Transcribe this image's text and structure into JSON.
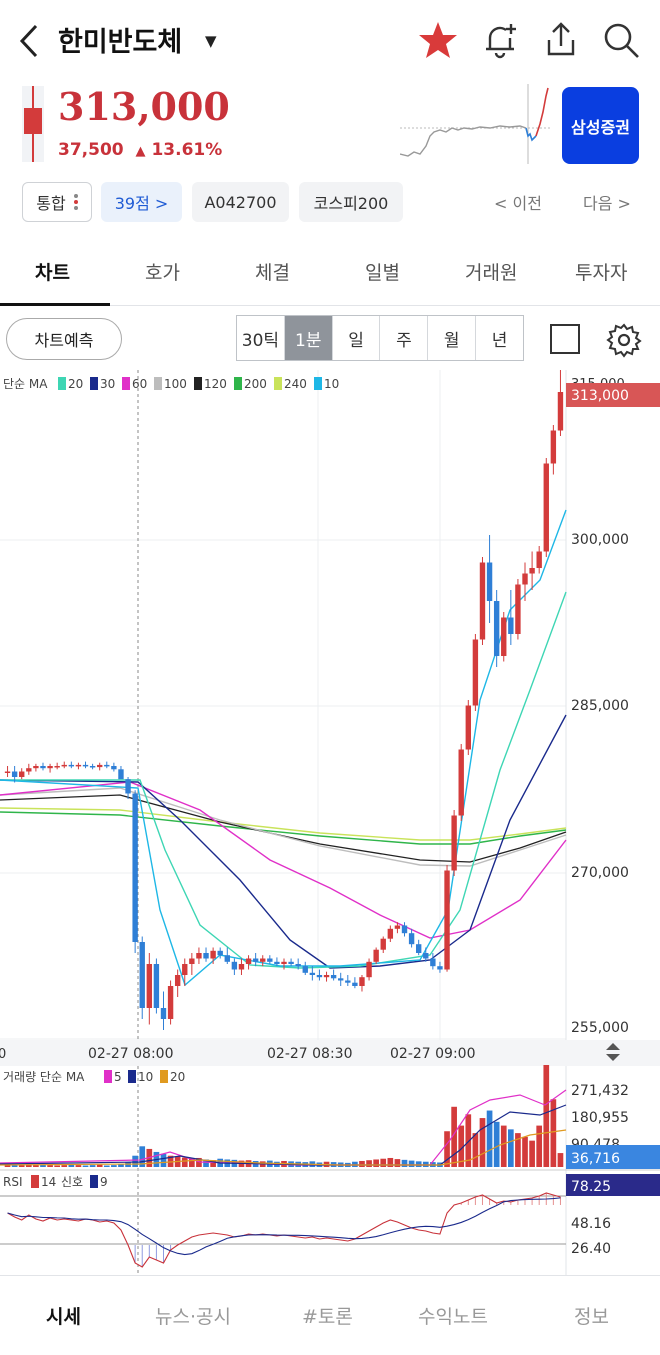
{
  "header": {
    "stock_name": "한미반도체",
    "icons": [
      "back-icon",
      "star-icon",
      "bell-add-icon",
      "share-icon",
      "search-icon"
    ]
  },
  "quote": {
    "price": "313,000",
    "change_amount": "37,500",
    "change_arrow": "▲",
    "change_rate": "13.61%",
    "broker_button": "삼성증권",
    "up_color": "#c8323a"
  },
  "chips": {
    "integrated": "통합",
    "score": "39점 >",
    "code": "A042700",
    "index": "코스피200",
    "prev": "< 이전",
    "next": "다음 >"
  },
  "tabs": [
    "차트",
    "호가",
    "체결",
    "일별",
    "거래원",
    "투자자"
  ],
  "active_tab": "차트",
  "toolbar": {
    "predict_label": "차트예측",
    "periods": [
      "30틱",
      "1분",
      "일",
      "주",
      "월",
      "년"
    ],
    "active_period": "1분"
  },
  "price_panel": {
    "legend_prefix": "단순 MA",
    "ma": [
      {
        "period": "20",
        "color": "#3ed6b4"
      },
      {
        "period": "30",
        "color": "#1a2a8c"
      },
      {
        "period": "60",
        "color": "#e030c8"
      },
      {
        "period": "100",
        "color": "#bdbdbd"
      },
      {
        "period": "120",
        "color": "#222222"
      },
      {
        "period": "200",
        "color": "#2fb54a"
      },
      {
        "period": "240",
        "color": "#c9e35a"
      },
      {
        "period": "10",
        "color": "#1eb7e6"
      }
    ],
    "y_ticks": [
      "315,000",
      "300,000",
      "285,000",
      "270,000",
      "255,000"
    ],
    "current_price_tag": "313,000",
    "x_ticks": [
      "02-27 08:00",
      "02-27 08:30",
      "02-27 09:00"
    ]
  },
  "volume_panel": {
    "legend_prefix": "거래량 단순 MA",
    "ma": [
      {
        "period": "5",
        "color": "#e030c8"
      },
      {
        "period": "10",
        "color": "#1a2a8c"
      },
      {
        "period": "20",
        "color": "#e09a20"
      }
    ],
    "y_ticks": [
      "271,432",
      "180,955",
      "90,478"
    ],
    "current_tag": "36,716"
  },
  "rsi_panel": {
    "legend_prefix": "RSI",
    "period": "14",
    "signal_label": "신호",
    "signal_period": "9",
    "y_ticks": [
      "48.16",
      "26.40"
    ],
    "current_tag": "78.25"
  },
  "chart_data": {
    "type": "candlestick",
    "y_range": [
      255000,
      315000
    ],
    "up_color": "#d33b3b",
    "down_color": "#2f7fd6",
    "candles": [
      [
        278500,
        279000,
        278000,
        278500
      ],
      [
        278500,
        279000,
        277500,
        278000
      ],
      [
        278000,
        278800,
        277800,
        278500
      ],
      [
        278500,
        279200,
        278200,
        278800
      ],
      [
        278800,
        279200,
        278500,
        279000
      ],
      [
        279000,
        279300,
        278600,
        278800
      ],
      [
        278800,
        279200,
        278400,
        279000
      ],
      [
        279000,
        279300,
        278700,
        279000
      ],
      [
        279000,
        279400,
        278800,
        279100
      ],
      [
        279100,
        279400,
        278800,
        279000
      ],
      [
        279000,
        279300,
        278700,
        279100
      ],
      [
        279100,
        279400,
        278800,
        279000
      ],
      [
        279000,
        279200,
        278700,
        278900
      ],
      [
        278900,
        279300,
        278600,
        279100
      ],
      [
        279100,
        279400,
        278800,
        279000
      ],
      [
        279000,
        279300,
        278500,
        278700
      ],
      [
        278700,
        279000,
        278000,
        277800
      ],
      [
        277800,
        278000,
        276000,
        276500
      ],
      [
        276500,
        276800,
        262000,
        263000
      ],
      [
        263000,
        263500,
        256000,
        257000
      ],
      [
        257000,
        262000,
        255500,
        261000
      ],
      [
        261000,
        261500,
        256500,
        257000
      ],
      [
        257000,
        258500,
        255000,
        256000
      ],
      [
        256000,
        259500,
        255500,
        259000
      ],
      [
        259000,
        260500,
        258000,
        260000
      ],
      [
        260000,
        261500,
        259000,
        261000
      ],
      [
        261000,
        262000,
        260000,
        261500
      ],
      [
        261500,
        262500,
        261000,
        262000
      ],
      [
        262000,
        262500,
        261200,
        261500
      ],
      [
        261500,
        262500,
        261000,
        262200
      ],
      [
        262200,
        262500,
        261500,
        261800
      ],
      [
        261800,
        262500,
        261000,
        261200
      ],
      [
        261200,
        261500,
        260000,
        260500
      ],
      [
        260500,
        261500,
        260000,
        261000
      ],
      [
        261000,
        261800,
        260500,
        261500
      ],
      [
        261500,
        262000,
        260800,
        261200
      ],
      [
        261200,
        261800,
        260800,
        261500
      ],
      [
        261500,
        261800,
        261000,
        261200
      ],
      [
        261200,
        261600,
        260800,
        261000
      ],
      [
        261000,
        261500,
        260500,
        261200
      ],
      [
        261200,
        261500,
        260800,
        261000
      ],
      [
        261000,
        261500,
        260500,
        260800
      ],
      [
        260800,
        261200,
        260000,
        260200
      ],
      [
        260200,
        260800,
        259500,
        260000
      ],
      [
        260000,
        260500,
        259500,
        259800
      ],
      [
        259800,
        260300,
        259400,
        260000
      ],
      [
        260000,
        260500,
        259500,
        259700
      ],
      [
        259700,
        260200,
        259000,
        259500
      ],
      [
        259500,
        260000,
        259000,
        259300
      ],
      [
        259300,
        259800,
        258800,
        259000
      ],
      [
        259000,
        260000,
        258500,
        259800
      ],
      [
        259800,
        261500,
        259500,
        261200
      ],
      [
        261200,
        262500,
        261000,
        262300
      ],
      [
        262300,
        263500,
        262000,
        263300
      ],
      [
        263300,
        264500,
        263000,
        264200
      ],
      [
        264200,
        264800,
        263800,
        264500
      ],
      [
        264500,
        264800,
        263500,
        263800
      ],
      [
        263800,
        264200,
        262500,
        262800
      ],
      [
        262800,
        263200,
        261800,
        262000
      ],
      [
        262000,
        262500,
        261200,
        261500
      ],
      [
        261500,
        262000,
        260500,
        260800
      ],
      [
        260800,
        261200,
        260200,
        260500
      ],
      [
        260500,
        270000,
        260300,
        269500
      ],
      [
        269500,
        275000,
        269000,
        274500
      ],
      [
        274500,
        281000,
        274000,
        280500
      ],
      [
        280500,
        285000,
        280000,
        284500
      ],
      [
        284500,
        291000,
        284000,
        290500
      ],
      [
        290500,
        298000,
        290000,
        297500
      ],
      [
        297500,
        300000,
        292000,
        294000
      ],
      [
        294000,
        295000,
        288000,
        289000
      ],
      [
        289000,
        293000,
        288500,
        292500
      ],
      [
        292500,
        295000,
        290000,
        291000
      ],
      [
        291000,
        296000,
        290500,
        295500
      ],
      [
        295500,
        297500,
        294000,
        296500
      ],
      [
        296500,
        298500,
        295000,
        297000
      ],
      [
        297000,
        299000,
        296500,
        298500
      ],
      [
        298500,
        307000,
        298000,
        306500
      ],
      [
        306500,
        310000,
        305500,
        309500
      ],
      [
        309500,
        315000,
        309000,
        313000
      ]
    ],
    "volume_values": [
      8,
      6,
      5,
      7,
      5,
      6,
      5,
      4,
      5,
      6,
      5,
      4,
      5,
      6,
      4,
      5,
      7,
      12,
      30,
      55,
      48,
      40,
      35,
      30,
      28,
      25,
      22,
      24,
      20,
      18,
      22,
      20,
      19,
      17,
      18,
      16,
      15,
      17,
      14,
      16,
      15,
      14,
      13,
      15,
      12,
      14,
      13,
      12,
      11,
      14,
      16,
      18,
      20,
      22,
      24,
      21,
      19,
      17,
      15,
      14,
      13,
      12,
      95,
      160,
      110,
      140,
      90,
      130,
      150,
      120,
      110,
      100,
      90,
      80,
      70,
      110,
      271,
      180,
      37
    ],
    "rsi_values": [
      62,
      58,
      55,
      60,
      56,
      54,
      57,
      55,
      56,
      55,
      54,
      56,
      55,
      53,
      54,
      52,
      45,
      30,
      12,
      8,
      18,
      15,
      12,
      25,
      30,
      34,
      38,
      40,
      41,
      42,
      41,
      40,
      38,
      39,
      41,
      40,
      41,
      40,
      39,
      40,
      39,
      38,
      37,
      38,
      36,
      37,
      36,
      35,
      34,
      36,
      40,
      44,
      48,
      52,
      55,
      53,
      50,
      47,
      45,
      44,
      42,
      41,
      62,
      70,
      72,
      75,
      78,
      80,
      76,
      72,
      74,
      73,
      75,
      76,
      77,
      79,
      82,
      80,
      78
    ]
  }
}
